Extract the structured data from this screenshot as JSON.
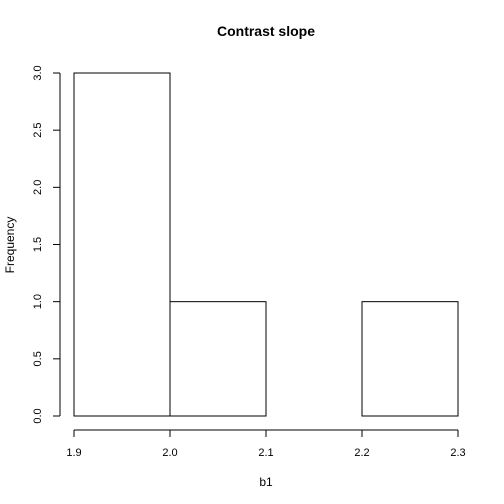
{
  "chart_data": {
    "type": "bar",
    "title": "Contrast slope",
    "xlabel": "b1",
    "ylabel": "Frequency",
    "bins": [
      {
        "from": 1.9,
        "to": 2.0,
        "count": 3
      },
      {
        "from": 2.0,
        "to": 2.1,
        "count": 1
      },
      {
        "from": 2.1,
        "to": 2.2,
        "count": 0
      },
      {
        "from": 2.2,
        "to": 2.3,
        "count": 1
      }
    ],
    "xlim": [
      1.9,
      2.3
    ],
    "ylim": [
      0,
      3
    ],
    "x_ticks": [
      "1.9",
      "2.0",
      "2.1",
      "2.2",
      "2.3"
    ],
    "y_ticks": [
      "0.0",
      "0.5",
      "1.0",
      "1.5",
      "2.0",
      "2.5",
      "3.0"
    ],
    "grid": false
  }
}
